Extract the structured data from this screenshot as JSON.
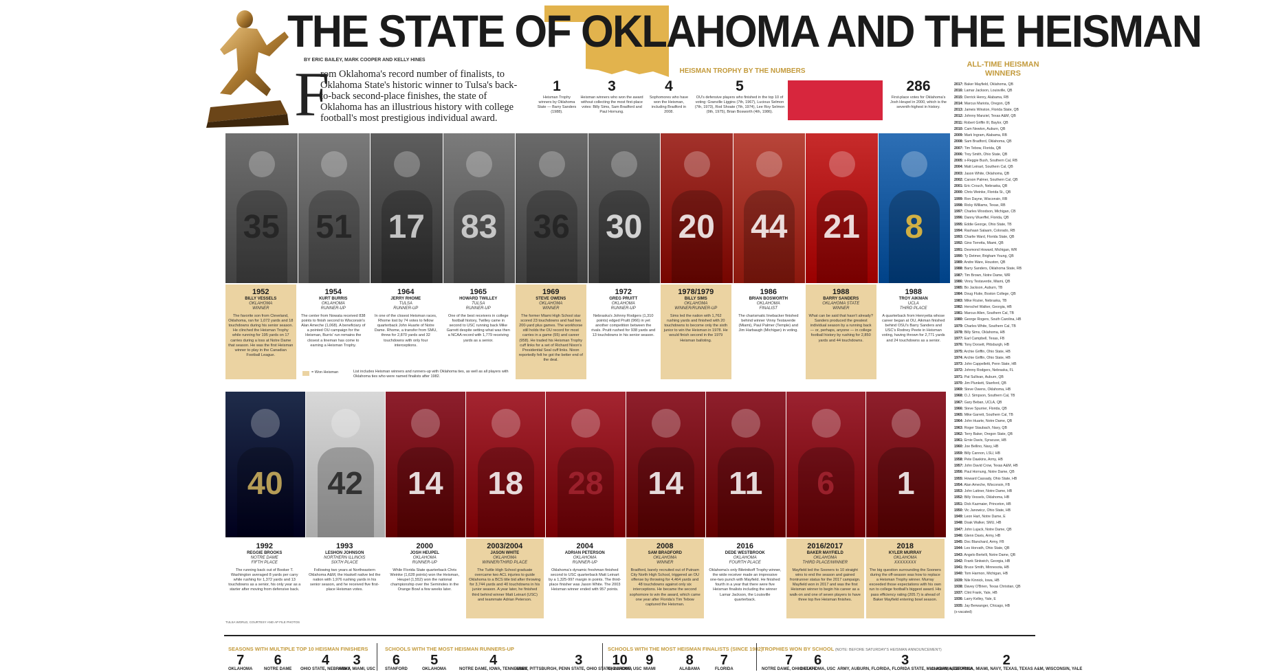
{
  "header": {
    "title": "THE STATE OF OKLAHOMA AND THE HEISMAN",
    "byline": "BY ERIC BAILEY, MARK COOPER AND KELLY HINES",
    "dropcap": "F",
    "intro": "rom Oklahoma's record number of finalists, to Oklahoma State's historic winner to Tulsa's back-to-back second-place finishes, the state of Oklahoma has an illustrious history with college football's most prestigious individual award.",
    "colors": {
      "gold": "#c39a3b",
      "card": "#ebd3a2",
      "red": "#d7263d"
    }
  },
  "by_the_numbers": {
    "title": "HEISMAN TROPHY BY THE NUMBERS",
    "items": [
      {
        "num": "1",
        "text": "Heisman Trophy winners by Oklahoma State — Barry Sanders (1988)."
      },
      {
        "num": "3",
        "text": "Heisman winners who won the award without collecting the most first-place votes: Billy Sims, Sam Bradford and Paul Hornung."
      },
      {
        "num": "4",
        "text": "Sophomores who have won the Heisman, including Bradford in 2008."
      },
      {
        "num": "5",
        "text": "OU's defensive players who finished in the top 10 of voting: Granville Liggins (7th, 1967), Lucious Selmon (7th, 1973), Rod Shoate (7th, 1974), Lee Roy Selmon (9th, 1975), Brian Bosworth (4th, 1986)."
      },
      {
        "num": "286",
        "text": "First-place votes for Oklahoma's Josh Heupel in 2000, which is the seventh-highest in history."
      }
    ]
  },
  "all_time": {
    "title": "ALL-TIME HEISMAN WINNERS",
    "list": [
      [
        "2017:",
        "Baker Mayfield, Oklahoma, QB"
      ],
      [
        "2016:",
        "Lamar Jackson, Louisville, QB"
      ],
      [
        "2015:",
        "Derrick Henry, Alabama, RB"
      ],
      [
        "2014:",
        "Marcus Mariota, Oregon, QB"
      ],
      [
        "2013:",
        "Jameis Winston, Florida State, QB"
      ],
      [
        "2012:",
        "Johnny Manziel, Texas A&M, QB"
      ],
      [
        "2011:",
        "Robert Griffin III, Baylor, QB"
      ],
      [
        "2010:",
        "Cam Newton, Auburn, QB"
      ],
      [
        "2009:",
        "Mark Ingram, Alabama, RB"
      ],
      [
        "2008:",
        "Sam Bradford, Oklahoma, QB"
      ],
      [
        "2007:",
        "Tim Tebow, Florida, QB"
      ],
      [
        "2006:",
        "Troy Smith, Ohio State, QB"
      ],
      [
        "2005:",
        "x-Reggie Bush, Southern Cal, RB"
      ],
      [
        "2004:",
        "Matt Leinart, Southern Cal, QB"
      ],
      [
        "2003:",
        "Jason White, Oklahoma, QB"
      ],
      [
        "2002:",
        "Carson Palmer, Southern Cal, QB"
      ],
      [
        "2001:",
        "Eric Crouch, Nebraska, QB"
      ],
      [
        "2000:",
        "Chris Weinke, Florida St., QB"
      ],
      [
        "1999:",
        "Ron Dayne, Wisconsin, RB"
      ],
      [
        "1998:",
        "Ricky Williams, Texas, RB"
      ],
      [
        "1997:",
        "Charles Woodson, Michigan, CB"
      ],
      [
        "1996:",
        "Danny Wuerffel, Florida, QB"
      ],
      [
        "1995:",
        "Eddie George, Ohio State, TB"
      ],
      [
        "1994:",
        "Rashaan Salaam, Colorado, RB"
      ],
      [
        "1993:",
        "Charlie Ward, Florida State, QB"
      ],
      [
        "1992:",
        "Gino Torretta, Miami, QB"
      ],
      [
        "1991:",
        "Desmond Howard, Michigan, WR"
      ],
      [
        "1990:",
        "Ty Detmer, Brigham Young, QB"
      ],
      [
        "1989:",
        "Andre Ware, Houston, QB"
      ],
      [
        "1988:",
        "Barry Sanders, Oklahoma State, RB"
      ],
      [
        "1987:",
        "Tim Brown, Notre Dame, WR"
      ],
      [
        "1986:",
        "Vinny Testaverde, Miami, QB"
      ],
      [
        "1985:",
        "Bo Jackson, Auburn, TB"
      ],
      [
        "1984:",
        "Doug Flutie, Boston College, QB"
      ],
      [
        "1983:",
        "Mike Rozier, Nebraska, TB"
      ],
      [
        "1982:",
        "Herschel Walker, Georgia, HB"
      ],
      [
        "1981:",
        "Marcus Allen, Southern Cal, TB"
      ],
      [
        "1980:",
        "George Rogers, South Carolina, HB"
      ],
      [
        "1979:",
        "Charles White, Southern Cal, TB"
      ],
      [
        "1978:",
        "Billy Sims, Oklahoma, HB"
      ],
      [
        "1977:",
        "Earl Campbell, Texas, FB"
      ],
      [
        "1976:",
        "Tony Dorsett, Pittsburgh, HB"
      ],
      [
        "1975:",
        "Archie Griffin, Ohio State, HB"
      ],
      [
        "1974:",
        "Archie Griffin, Ohio State, HB"
      ],
      [
        "1973:",
        "John Cappelletti, Penn State, HB"
      ],
      [
        "1972:",
        "Johnny Rodgers, Nebraska, FL"
      ],
      [
        "1971:",
        "Pat Sullivan, Auburn, QB"
      ],
      [
        "1970:",
        "Jim Plunkett, Stanford, QB"
      ],
      [
        "1969:",
        "Steve Owens, Oklahoma, HB"
      ],
      [
        "1968:",
        "O.J. Simpson, Southern Cal, TB"
      ],
      [
        "1967:",
        "Gary Beban, UCLA, QB"
      ],
      [
        "1966:",
        "Steve Spurrier, Florida, QB"
      ],
      [
        "1965:",
        "Mike Garrett, Southern Cal, TB"
      ],
      [
        "1964:",
        "John Huarte, Notre Dame, QB"
      ],
      [
        "1963:",
        "Roger Staubach, Navy, QB"
      ],
      [
        "1962:",
        "Terry Baker, Oregon State, QB"
      ],
      [
        "1961:",
        "Ernie Davis, Syracuse, HB"
      ],
      [
        "1960:",
        "Joe Bellino, Navy, HB"
      ],
      [
        "1959:",
        "Billy Cannon, LSU, HB"
      ],
      [
        "1958:",
        "Pete Dawkins, Army, HB"
      ],
      [
        "1957:",
        "John David Crow, Texas A&M, HB"
      ],
      [
        "1956:",
        "Paul Hornung, Notre Dame, QB"
      ],
      [
        "1955:",
        "Howard Cassady, Ohio State, HB"
      ],
      [
        "1954:",
        "Alan Ameche, Wisconsin, FB"
      ],
      [
        "1953:",
        "John Lattner, Notre Dame, HB"
      ],
      [
        "1952:",
        "Billy Vessels, Oklahoma, HB"
      ],
      [
        "1951:",
        "Dick Kazmaier, Princeton, HB"
      ],
      [
        "1950:",
        "Vic Janowicz, Ohio State, HB"
      ],
      [
        "1949:",
        "Leon Hart, Notre Dame, E"
      ],
      [
        "1948:",
        "Doak Walker, SMU, HB"
      ],
      [
        "1947:",
        "John Lujack, Notre Dame, QB"
      ],
      [
        "1946:",
        "Glenn Davis, Army, HB"
      ],
      [
        "1945:",
        "Doc Blanchard, Army, FB"
      ],
      [
        "1944:",
        "Les Horvath, Ohio State, QB"
      ],
      [
        "1943:",
        "Angelo Bertelli, Notre Dame, QB"
      ],
      [
        "1942:",
        "Frank Sinkwich, Georgia, HB"
      ],
      [
        "1941:",
        "Bruce Smith, Minnesota, HB"
      ],
      [
        "1940:",
        "Tom Harmon, Michigan, HB"
      ],
      [
        "1939:",
        "Nile Kinnick, Iowa, HB"
      ],
      [
        "1938:",
        "Davey O'Brien, Texas Christian, QB"
      ],
      [
        "1937:",
        "Clint Frank, Yale, HB"
      ],
      [
        "1936:",
        "Larry Kelley, Yale, E"
      ],
      [
        "1935:",
        "Jay Berwanger, Chicago, HB"
      ],
      [
        "",
        "(x-vacated)"
      ]
    ]
  },
  "row1": [
    {
      "year": "1952",
      "name": "BILLY VESSELS",
      "school": "OKLAHOMA",
      "status": "WINNER",
      "won": true,
      "jersey": "35",
      "desc": "The favorite son from Cleveland, Oklahoma, ran for 1,072 yards and 18 touchdowns during his senior season. He clinched the Heisman Trophy while running for 195 yards on 17 carries during a loss at Notre Dame that season. He was the first Heisman winner to play in the Canadian Football League."
    },
    {
      "year": "1954",
      "name": "KURT BURRIS",
      "school": "OKLAHOMA",
      "status": "RUNNER-UP",
      "won": false,
      "jersey": "51",
      "desc": "The center from Nowata received 838 points to finish second to Wisconsin's Alan Ameche (1,068). A beneficiary of a pointed OU campaign for the Heisman, Burris' run remains the closest a lineman has come to earning a Heisman Trophy."
    },
    {
      "year": "1964",
      "name": "JERRY RHOME",
      "school": "TULSA",
      "status": "RUNNER-UP",
      "won": false,
      "jersey": "17",
      "desc": "In one of the closest Heisman races, Rhome lost by 74 votes to fellow quarterback John Huarte of Notre Dame. Rhome, a transfer from SMU, threw for 2,870 yards and 32 touchdowns with only four interceptions."
    },
    {
      "year": "1965",
      "name": "HOWARD TWILLEY",
      "school": "TULSA",
      "status": "RUNNER-UP",
      "won": false,
      "jersey": "83",
      "desc": "One of the best receivers in college football history, Twilley came in second to USC running back Mike Garrett despite setting what was then a NCAA record with 1,779 receiving yards as a senior."
    },
    {
      "year": "1969",
      "name": "STEVE OWENS",
      "school": "OKLAHOMA",
      "status": "WINNER",
      "won": true,
      "jersey": "36",
      "desc": "The former Miami High School star scored 23 touchdowns and had two 200-yard plus games. The workhorse still holds the OU record for most carries in a game (55) and career (958). He traded his Heisman Trophy cuff links for a set of Richard Nixon's Presidential Seal cuff links. Nixon reportedly felt he got the better end of the deal."
    },
    {
      "year": "1972",
      "name": "GREG PRUITT",
      "school": "OKLAHOMA",
      "status": "RUNNER-UP",
      "won": false,
      "jersey": "30",
      "desc": "Nebraska's Johnny Rodgers (1,310 points) edged Pruitt (966) in yet another competition between the rivals. Pruitt rushed for 938 yards and 13 touchdowns in his senior season."
    },
    {
      "year": "1978/1979",
      "name": "BILLY SIMS",
      "school": "OKLAHOMA",
      "status": "WINNER/RUNNER-UP",
      "won": true,
      "jersey": "20",
      "desc": "Sims led the nation with 1,762 rushing yards and finished with 20 touchdowns to become only the sixth junior to win the Heisman in 1978. He would finish second in the 1979 Heisman balloting."
    },
    {
      "year": "1986",
      "name": "BRIAN BOSWORTH",
      "school": "OKLAHOMA",
      "status": "FINALIST",
      "won": false,
      "jersey": "44",
      "desc": "The charismatic linebacker finished behind winner Vinny Testaverde (Miami), Paul Palmer (Temple) and Jim Harbaugh (Michigan) in voting."
    },
    {
      "year": "1988",
      "name": "BARRY SANDERS",
      "school": "OKLAHOMA STATE",
      "status": "WINNER",
      "won": true,
      "jersey": "21",
      "desc": "What can be said that hasn't already? Sanders produced the greatest individual season by a running back — or, perhaps, anyone — in college football history by rushing for 2,850 yards and 44 touchdowns."
    },
    {
      "year": "1988",
      "name": "TROY AIKMAN",
      "school": "UCLA",
      "status": "THIRD PLACE",
      "won": false,
      "jersey": "8",
      "desc": "A quarterback from Henryetta whose career began at OU, Aikman finished behind OSU's Barry Sanders and USC's Rodney Peete in Heisman voting, having thrown for 2,771 yards and 24 touchdowns as a senior."
    }
  ],
  "row2": [
    {
      "year": "1992",
      "name": "REGGIE BROOKS",
      "school": "NOTRE DAME",
      "status": "FIFTH PLACE",
      "won": false,
      "jersey": "40",
      "desc": "The running back out of Booker T. Washington averaged 8 yards per carry while rushing for 1,372 yards and 13 touchdowns as a senior, his only year as a starter after moving from defensive back."
    },
    {
      "year": "1993",
      "name": "LESHON JOHNSON",
      "school": "NORTHERN ILLINOIS",
      "status": "SIXTH PLACE",
      "won": false,
      "jersey": "42",
      "desc": "Following two years at Northeastern Oklahoma A&M, the Haskell native led the nation with 1,976 rushing yards in his senior season, and he received five first-place Heisman votes."
    },
    {
      "year": "2000",
      "name": "JOSH HEUPEL",
      "school": "OKLAHOMA",
      "status": "RUNNER-UP",
      "won": false,
      "jersey": "14",
      "desc": "While Florida State quarterback Chris Weinke (1,628 points) won the Heisman, Heupel (1,552) won the national championship over the Seminoles in the Orange Bowl a few weeks later."
    },
    {
      "year": "2003/2004",
      "name": "JASON WHITE",
      "school": "OKLAHOMA",
      "status": "WINNER/THIRD PLACE",
      "won": true,
      "jersey": "18",
      "desc": "The Tuttle High School graduate overcame two ACL injuries to guide Oklahoma to a BCS title bid after throwing for 3,744 yards and 40 touchdowns in his junior season. A year later, he finished third behind winner Matt Leinart (USC) and teammate Adrian Peterson."
    },
    {
      "year": "2004",
      "name": "ADRIAN PETERSON",
      "school": "OKLAHOMA",
      "status": "RUNNER-UP",
      "won": false,
      "jersey": "28",
      "desc": "Oklahoma's dynamic freshman finished second to USC quarterback Matt Leinart by a 1,325-997 margin in points. The third-place finisher was Jason White. The 2003 Heisman winner ended with 957 points."
    },
    {
      "year": "2008",
      "name": "SAM BRADFORD",
      "school": "OKLAHOMA",
      "status": "WINNER",
      "won": true,
      "jersey": "14",
      "desc": "Bradford, barely recruited out of Putnam City North High School, triggered an OU offense by throwing for 4,464 yards and 48 touchdowns against only six interceptions. He became the second sophomore to win the award, which came one year after Florida's Tim Tebow captured the Heisman."
    },
    {
      "year": "2016",
      "name": "DEDE WESTBROOK",
      "school": "OKLAHOMA",
      "status": "FOURTH PLACE",
      "won": false,
      "jersey": "11",
      "desc": "Oklahoma's only Biletnikoff Trophy winner, the wide receiver made an impressive one-two punch with Mayfield. He finished fourth in a year that there were five Heisman finalists including the winner Lamar Jackson, the Louisville quarterback."
    },
    {
      "year": "2016/2017",
      "name": "BAKER MAYFIELD",
      "school": "OKLAHOMA",
      "status": "THIRD PLACE/WINNER",
      "won": true,
      "jersey": "6",
      "desc": "Mayfield led the Sooners to 10 straight wins to end the season and gained frontrunner status for the 2017 campaign. Mayfield won in 2017 and was the first Heisman winner to begin his career as a walk-on and one of seven players to have three top five Heisman finishes."
    },
    {
      "year": "2018",
      "name": "KYLER MURRAY",
      "school": "OKLAHOMA",
      "status": "XXXXXXXX",
      "won": true,
      "jersey": "1",
      "desc": "The big question surrounding the Sooners during the off-season was how to replace a Heisman Trophy winner. Murray exceeded those expectations with his own run to college football's biggest award. His pass efficiency rating (205.7) is ahead of Baker Mayfield entering bowl season."
    }
  ],
  "legend": {
    "swatch_label": "= Won Heisman",
    "note": "List includes Heisman winners and runners-up with Oklahoma ties, as well as all players with Oklahoma ties who were named finalists after 1982."
  },
  "credit": "TULSA WORLD, COURTESY AND AP FILE PHOTOS",
  "bottom": [
    {
      "title": "SEASONS WITH MULTIPLE TOP 10 HEISMAN FINISHERS",
      "note": "",
      "items": [
        {
          "n": "7",
          "l": "OKLAHOMA"
        },
        {
          "n": "6",
          "l": "NOTRE DAME"
        },
        {
          "n": "4",
          "l": "OHIO STATE, NEBRASKA"
        },
        {
          "n": "3",
          "l": "ARMY, MIAMI, USC"
        }
      ]
    },
    {
      "title": "SCHOOLS WITH THE MOST HEISMAN RUNNERS-UP",
      "note": "",
      "items": [
        {
          "n": "6",
          "l": "STANFORD"
        },
        {
          "n": "5",
          "l": "OKLAHOMA"
        },
        {
          "n": "4",
          "l": "NOTRE DAME, IOWA, TENNESSEE"
        },
        {
          "n": "3",
          "l": "ARMY, PITTSBURGH, PENN STATE, OHIO STATE, PURDUE, USC"
        }
      ]
    },
    {
      "title": "SCHOOLS WITH THE MOST HEISMAN FINALISTS (SINCE 1982)",
      "note": "",
      "items": [
        {
          "n": "10",
          "l": "OKLAHOMA"
        },
        {
          "n": "9",
          "l": "MIAMI"
        },
        {
          "n": "8",
          "l": "ALABAMA"
        },
        {
          "n": "7",
          "l": "FLORIDA"
        }
      ]
    },
    {
      "title": "TROPHIES WON BY SCHOOL",
      "note": "(NOTE: BEFORE SATURDAY'S HEISMAN ANNOUNCEMENT)",
      "items": [
        {
          "n": "7",
          "l": "NOTRE DAME, OHIO STATE"
        },
        {
          "n": "6",
          "l": "OKLAHOMA, USC"
        },
        {
          "n": "3",
          "l": "ARMY, AUBURN, FLORIDA, FLORIDA STATE, MICHIGAN, NEBRASKA"
        },
        {
          "n": "2",
          "l": "ALABAMA, GEORGIA, MIAMI, NAVY, TEXAS, TEXAS A&M, WISCONSIN, YALE"
        }
      ]
    }
  ]
}
